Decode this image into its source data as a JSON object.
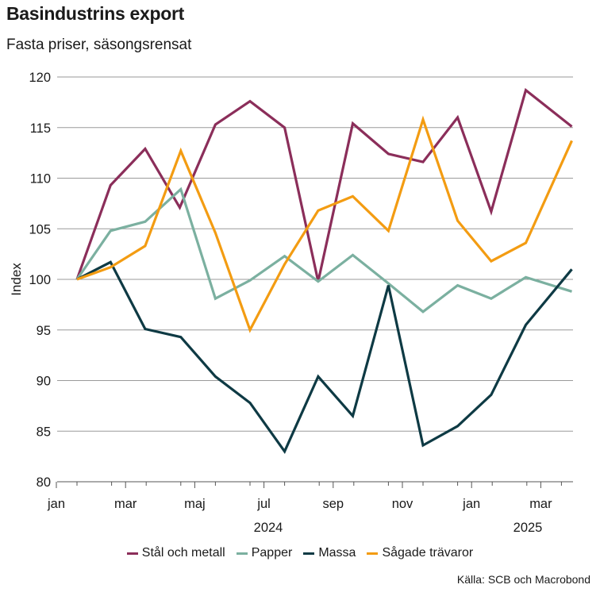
{
  "chart_data": {
    "type": "line",
    "title": "Basindustrins export",
    "subtitle": "Fasta priser, säsongsrensat",
    "ylabel": "Index",
    "xlabel": "",
    "ylim": [
      80,
      120
    ],
    "yticks": [
      80,
      85,
      90,
      95,
      100,
      105,
      110,
      115,
      120
    ],
    "grid": true,
    "x": [
      "2024-01",
      "2024-02",
      "2024-03",
      "2024-04",
      "2024-05",
      "2024-06",
      "2024-07",
      "2024-08",
      "2024-09",
      "2024-10",
      "2024-11",
      "2024-12",
      "2025-01",
      "2025-02",
      "2025-03"
    ],
    "x_tick_labels": [
      {
        "index": 0,
        "label": "jan"
      },
      {
        "index": 2,
        "label": "mar"
      },
      {
        "index": 4,
        "label": "maj"
      },
      {
        "index": 6,
        "label": "jul"
      },
      {
        "index": 8,
        "label": "sep"
      },
      {
        "index": 10,
        "label": "nov"
      },
      {
        "index": 12,
        "label": "jan"
      },
      {
        "index": 14,
        "label": "mar"
      }
    ],
    "year_labels": [
      {
        "index": 6,
        "label": "2024"
      },
      {
        "index": 13.5,
        "label": "2025"
      }
    ],
    "series_x": [
      0.0,
      0.97,
      1.97,
      3.0,
      4.0,
      5.0,
      6.0,
      6.97,
      7.97,
      9.0,
      10.0,
      11.0,
      11.97,
      12.97,
      14.3
    ],
    "series": [
      {
        "name": "Stål och metall",
        "color": "#8b2e5a",
        "values": [
          100,
          109.3,
          112.9,
          107.1,
          115.3,
          117.6,
          115.0,
          99.8,
          115.4,
          112.4,
          111.6,
          116.0,
          106.7,
          118.7,
          115.1
        ],
        "xs": [
          0,
          0.97,
          1.97,
          2.97,
          4.0,
          5.0,
          6.0,
          6.97,
          7.97,
          9.0,
          10.0,
          11.0,
          11.97,
          12.97,
          14.3
        ]
      },
      {
        "name": "Papper",
        "color": "#7bb0a0",
        "values": [
          100,
          104.8,
          105.7,
          108.9,
          98.1,
          99.9,
          102.3,
          99.8,
          102.4,
          99.6,
          96.8,
          99.4,
          98.1,
          100.2,
          98.8
        ],
        "xs": [
          0,
          0.97,
          1.97,
          3.0,
          4.0,
          5.0,
          6.0,
          6.97,
          7.97,
          9.0,
          10.0,
          11.0,
          11.97,
          12.97,
          14.3
        ]
      },
      {
        "name": "Massa",
        "color": "#0e3a44",
        "values": [
          100,
          101.7,
          95.1,
          94.3,
          90.4,
          87.8,
          83.0,
          90.4,
          86.5,
          99.4,
          83.6,
          85.5,
          88.6,
          95.5,
          101.0
        ],
        "xs": [
          0,
          0.97,
          1.97,
          3.0,
          4.0,
          5.0,
          6.0,
          6.97,
          7.97,
          9.0,
          10.0,
          11.0,
          11.97,
          12.97,
          14.3
        ]
      },
      {
        "name": "Sågade trävaror",
        "color": "#f39c12",
        "values": [
          100,
          101.2,
          103.3,
          112.7,
          104.6,
          95.0,
          101.5,
          106.8,
          108.2,
          104.8,
          115.8,
          105.8,
          101.8,
          103.6,
          113.7
        ],
        "xs": [
          0,
          0.97,
          1.97,
          3.0,
          4.0,
          5.0,
          6.0,
          6.97,
          7.97,
          9.0,
          10.0,
          11.0,
          11.97,
          12.97,
          14.3
        ]
      }
    ],
    "legend": [
      "Stål och metall",
      "Papper",
      "Massa",
      "Sågade trävaror"
    ],
    "legend_position": "bottom-center",
    "source": "Källa: SCB och Macrobond"
  }
}
